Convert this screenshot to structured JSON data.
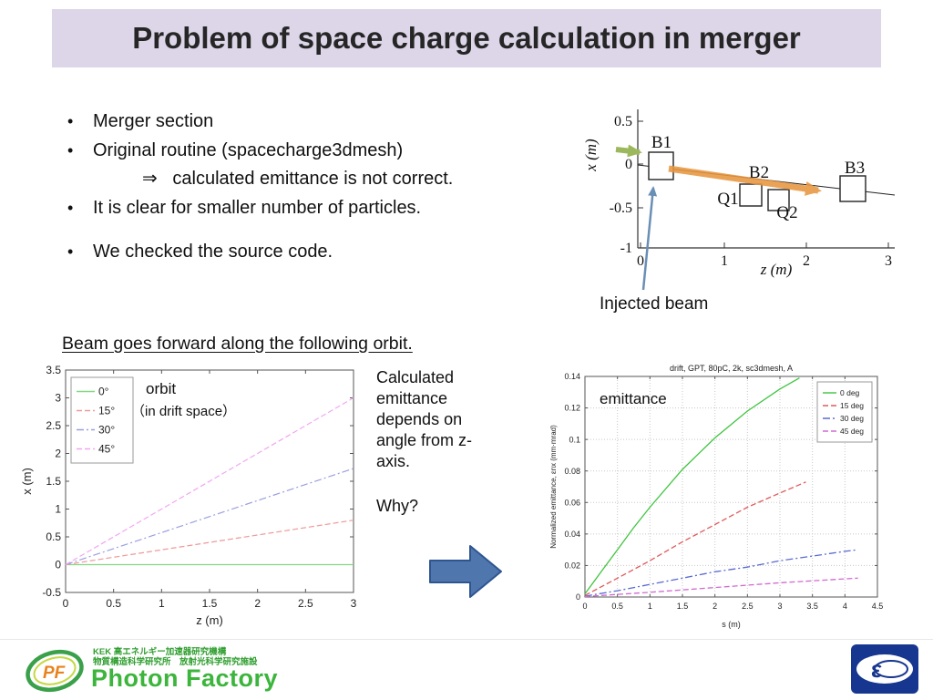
{
  "slide": {
    "title": "Problem of space charge calculation in merger",
    "bullets": [
      {
        "text": "Merger section",
        "marker": true,
        "indent": 0
      },
      {
        "text": "Original routine (spacecharge3dmesh)",
        "marker": true,
        "indent": 0
      },
      {
        "text": "⇒   calculated emittance is not correct.",
        "marker": false,
        "indent": 1
      },
      {
        "text": "It is clear for smaller number of particles.",
        "marker": true,
        "indent": 0
      },
      {
        "text": "",
        "marker": false,
        "indent": 0
      },
      {
        "text": "We checked the source code.",
        "marker": true,
        "indent": 0
      }
    ],
    "orbit_heading": "Beam goes forward along the following orbit.",
    "note_text": "Calculated emittance depends on angle from z-axis.",
    "note_question": "Why?"
  },
  "diagram": {
    "xlabel": "z (m)",
    "ylabel": "x (m)",
    "yticks": [
      "0.5",
      "0",
      "-0.5",
      "-1"
    ],
    "xticks": [
      "0",
      "1",
      "2",
      "3"
    ],
    "labels": {
      "b1": "B1",
      "b2": "B2",
      "b3": "B3",
      "q1": "Q1",
      "q2": "Q2"
    },
    "injected_label": "Injected beam"
  },
  "colors": {
    "banner_bg": "#ddd5e8",
    "flow_arrow_blue": "#4f76ad",
    "photon_factory_green": "#3cb53c",
    "kek_logo_blue": "#16368f"
  },
  "footer": {
    "monogram": "PF",
    "org_line1": "KEK 高エネルギー加速器研究機構",
    "org_line2": "物質構造科学研究所　放射光科学研究施設",
    "brand": "Photon Factory",
    "epsilon": "ε"
  },
  "chart_data": [
    {
      "type": "line",
      "name": "orbit-plot",
      "title": "",
      "xlabel": "z (m)",
      "ylabel": "x (m)",
      "xlim": [
        0,
        3
      ],
      "ylim": [
        -0.5,
        3.5
      ],
      "xticks": [
        0,
        0.5,
        1,
        1.5,
        2,
        2.5,
        3
      ],
      "yticks": [
        -0.5,
        0,
        0.5,
        1,
        1.5,
        2,
        2.5,
        3,
        3.5
      ],
      "grid": false,
      "legend_position": "top-left",
      "annotations": [
        "orbit",
        "（in drift space）"
      ],
      "series": [
        {
          "name": "0°",
          "color": "#82d882",
          "dash": "solid",
          "x": [
            0,
            3
          ],
          "y": [
            0,
            0
          ]
        },
        {
          "name": "15°",
          "color": "#ef9a9a",
          "dash": "dashed",
          "x": [
            0,
            3
          ],
          "y": [
            0,
            0.8
          ]
        },
        {
          "name": "30°",
          "color": "#9aa0e0",
          "dash": "dashdot",
          "x": [
            0,
            3
          ],
          "y": [
            0,
            1.73
          ]
        },
        {
          "name": "45°",
          "color": "#f2a6f2",
          "dash": "dashed",
          "x": [
            0,
            3
          ],
          "y": [
            0,
            3.0
          ]
        }
      ]
    },
    {
      "type": "line",
      "name": "emittance-plot",
      "title": "drift, GPT, 80pC, 2k, sc3dmesh, A",
      "xlabel": "s (m)",
      "ylabel": "Normalized emittance, εnx (mm·mrad)",
      "xlim": [
        0,
        4.5
      ],
      "ylim": [
        0,
        0.14
      ],
      "xticks": [
        0,
        0.5,
        1,
        1.5,
        2,
        2.5,
        3,
        3.5,
        4,
        4.5
      ],
      "yticks": [
        0,
        0.02,
        0.04,
        0.06,
        0.08,
        0.1,
        0.12,
        0.14
      ],
      "grid": true,
      "legend_position": "top-right",
      "annotations": [
        "emittance"
      ],
      "series": [
        {
          "name": "0 deg",
          "color": "#3fc43f",
          "dash": "solid",
          "x": [
            0,
            0.25,
            0.5,
            0.75,
            1,
            1.5,
            2,
            2.5,
            3,
            3.3
          ],
          "y": [
            0.002,
            0.016,
            0.03,
            0.044,
            0.057,
            0.081,
            0.101,
            0.118,
            0.132,
            0.139
          ]
        },
        {
          "name": "15 deg",
          "color": "#e05a5a",
          "dash": "dashed",
          "x": [
            0,
            0.5,
            1,
            1.5,
            2,
            2.5,
            3,
            3.4
          ],
          "y": [
            0.001,
            0.012,
            0.023,
            0.035,
            0.046,
            0.057,
            0.066,
            0.073
          ]
        },
        {
          "name": "30 deg",
          "color": "#5a6ad0",
          "dash": "dashdot",
          "x": [
            0,
            0.5,
            1,
            1.5,
            2,
            2.5,
            3,
            3.5,
            4,
            4.2
          ],
          "y": [
            0.0005,
            0.004,
            0.008,
            0.012,
            0.016,
            0.019,
            0.023,
            0.026,
            0.029,
            0.03
          ]
        },
        {
          "name": "45 deg",
          "color": "#d06ad0",
          "dash": "dashed",
          "x": [
            0,
            1,
            2,
            3,
            4,
            4.2
          ],
          "y": [
            0.0003,
            0.003,
            0.006,
            0.009,
            0.0115,
            0.012
          ]
        }
      ]
    }
  ]
}
